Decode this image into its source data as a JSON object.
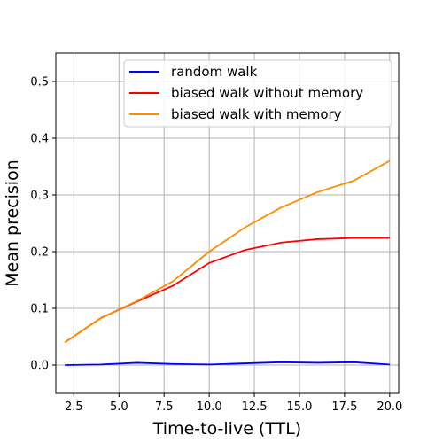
{
  "chart_data": {
    "type": "line",
    "xlabel": "Time-to-live (TTL)",
    "ylabel": "Mean precision",
    "xlim": [
      1.5,
      20.5
    ],
    "ylim": [
      -0.05,
      0.55
    ],
    "xticks": [
      2.5,
      5.0,
      7.5,
      10.0,
      12.5,
      15.0,
      17.5,
      20.0
    ],
    "xtick_labels": [
      "2.5",
      "5.0",
      "7.5",
      "10.0",
      "12.5",
      "15.0",
      "17.5",
      "20.0"
    ],
    "yticks": [
      0.0,
      0.1,
      0.2,
      0.3,
      0.4,
      0.5
    ],
    "ytick_labels": [
      "0.0",
      "0.1",
      "0.2",
      "0.3",
      "0.4",
      "0.5"
    ],
    "grid": true,
    "legend_position": "top-right",
    "x": [
      2,
      4,
      6,
      8,
      10,
      12,
      14,
      16,
      18,
      20
    ],
    "series": [
      {
        "name": "random walk",
        "color": "#0000ff",
        "values": [
          0.0,
          0.001,
          0.004,
          0.002,
          0.001,
          0.003,
          0.005,
          0.004,
          0.005,
          0.001
        ]
      },
      {
        "name": "biased walk without memory",
        "color": "#ff0000",
        "values": [
          0.04,
          0.083,
          0.112,
          0.14,
          0.18,
          0.203,
          0.216,
          0.222,
          0.224,
          0.224
        ]
      },
      {
        "name": "biased walk with memory",
        "color": "#ff8c00",
        "values": [
          0.04,
          0.083,
          0.113,
          0.148,
          0.2,
          0.243,
          0.278,
          0.305,
          0.325,
          0.36
        ]
      }
    ]
  }
}
